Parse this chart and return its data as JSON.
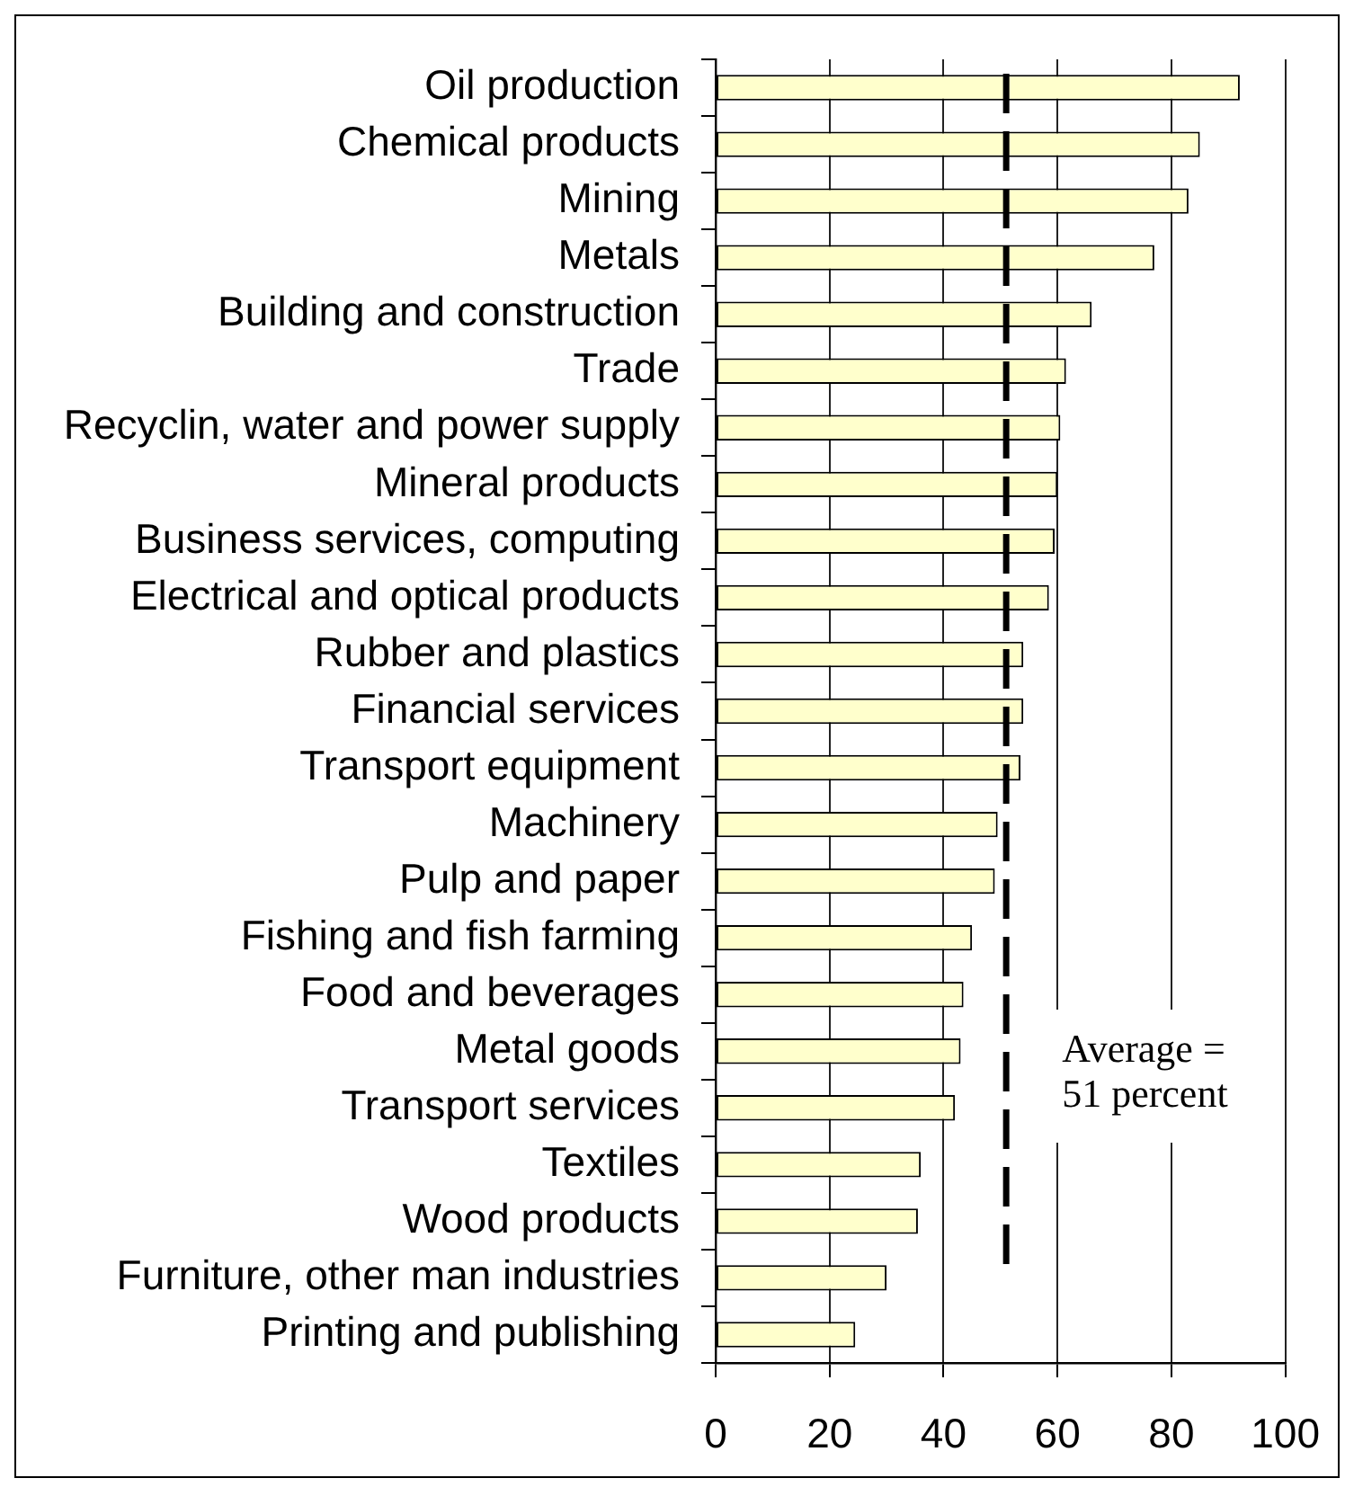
{
  "chart_data": {
    "type": "bar",
    "orientation": "horizontal",
    "categories": [
      "Oil production",
      "Chemical products",
      "Mining",
      "Metals",
      "Building and construction",
      "Trade",
      "Recyclin, water and power supply",
      "Mineral products",
      "Business services, computing",
      "Electrical and optical products",
      "Rubber and plastics",
      "Financial services",
      "Transport equipment",
      "Machinery",
      "Pulp and paper",
      "Fishing and fish farming",
      "Food and beverages",
      "Metal goods",
      "Transport services",
      "Textiles",
      "Wood products",
      "Furniture, other man industries",
      "Printing and publishing"
    ],
    "values": [
      92,
      85,
      83,
      77,
      66,
      61.5,
      60.5,
      60,
      59.5,
      58.5,
      54,
      54,
      53.5,
      49.5,
      49,
      45,
      43.5,
      43,
      42,
      36,
      35.5,
      30,
      24.5
    ],
    "color": "#ffffcc",
    "xlim": [
      0,
      100
    ],
    "xticks": [
      0,
      20,
      40,
      60,
      80,
      100
    ],
    "grid": "x",
    "ref_lines": [
      {
        "axis": "x",
        "value": 51,
        "label": "Average = 51 percent",
        "color": "#000000",
        "line_style": "dashed"
      }
    ]
  }
}
